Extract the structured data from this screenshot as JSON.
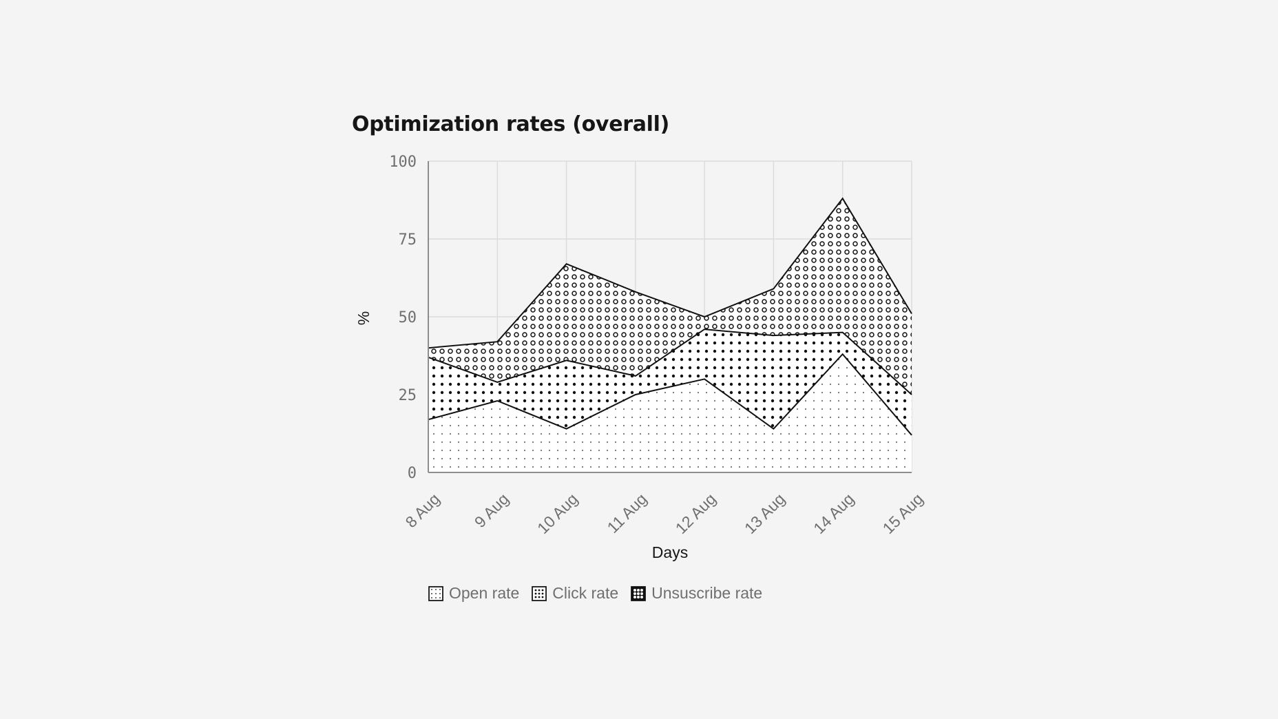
{
  "chart_data": {
    "type": "area",
    "stacked": true,
    "title": "Optimization rates (overall)",
    "xlabel": "Days",
    "ylabel": "%",
    "ylim": [
      0,
      100
    ],
    "yticks": [
      "100",
      "75",
      "50",
      "25",
      "0"
    ],
    "categories": [
      "8 Aug",
      "9 Aug",
      "10 Aug",
      "11 Aug",
      "12 Aug",
      "13 Aug",
      "14 Aug",
      "15 Aug"
    ],
    "series": [
      {
        "name": "Open rate",
        "values": [
          17,
          23,
          14,
          25,
          30,
          14,
          38,
          12
        ]
      },
      {
        "name": "Click rate",
        "values": [
          20,
          6,
          22,
          6,
          16,
          30,
          7,
          13
        ]
      },
      {
        "name": "Unsuscribe rate",
        "values": [
          3,
          13,
          31,
          27,
          4,
          15,
          43,
          26
        ]
      }
    ],
    "grid": true,
    "legend_position": "bottom-left"
  }
}
